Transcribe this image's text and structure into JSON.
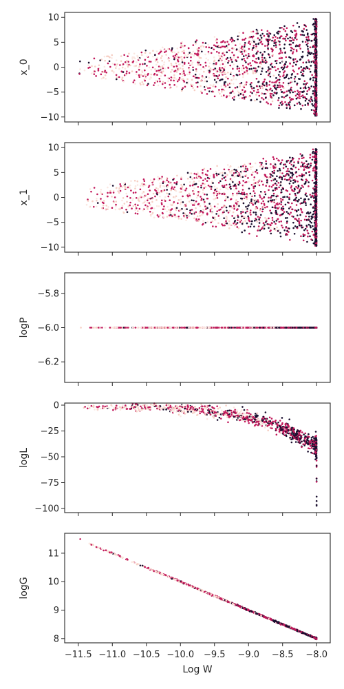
{
  "figure": {
    "xlabel": "Log W"
  },
  "colors": {
    "dark": "#1b1030",
    "mid": "#c2185b",
    "light": "#f6cfc4",
    "pale": "#fbe7e1",
    "axes": "#262626"
  },
  "shared_x": {
    "range": [
      -11.5,
      -8.0
    ],
    "ticks": [
      -11.5,
      -11.0,
      -10.5,
      -10.0,
      -9.5,
      -9.0,
      -8.5,
      -8.0
    ],
    "tick_labels": [
      "−11.5",
      "−11.0",
      "−10.5",
      "−10.0",
      "−9.5",
      "−9.0",
      "−8.5",
      "−8.0"
    ]
  },
  "chart_data": [
    {
      "type": "scatter",
      "ylabel": "x_0",
      "ylim": [
        -11,
        11
      ],
      "yticks": [
        10,
        5,
        0,
        -5,
        -10
      ],
      "ytick_labels": [
        "10",
        "5",
        "0",
        "−5",
        "−10"
      ],
      "shape": "fan",
      "spread_start": 1.6,
      "spread_end": 9.8,
      "grid": false
    },
    {
      "type": "scatter",
      "ylabel": "x_1",
      "ylim": [
        -11,
        11
      ],
      "yticks": [
        10,
        5,
        0,
        -5,
        -10
      ],
      "ytick_labels": [
        "10",
        "5",
        "0",
        "−5",
        "−10"
      ],
      "shape": "fan",
      "spread_start": 1.8,
      "spread_end": 9.8,
      "grid": false
    },
    {
      "type": "scatter",
      "ylabel": "logP",
      "ylim": [
        -6.32,
        -5.68
      ],
      "yticks": [
        -5.8,
        -6.0,
        -6.2
      ],
      "ytick_labels": [
        "−5.8",
        "−6.0",
        "−6.2"
      ],
      "shape": "constant",
      "value": -6.0,
      "grid": false
    },
    {
      "type": "scatter",
      "ylabel": "logL",
      "ylim": [
        -104,
        2
      ],
      "yticks": [
        0,
        -25,
        -50,
        -75,
        -100
      ],
      "ytick_labels": [
        "0",
        "−25",
        "−50",
        "−75",
        "−100"
      ],
      "shape": "curve",
      "start_value": -2,
      "knee_value": -40,
      "min_value": -100,
      "grid": false
    },
    {
      "type": "scatter",
      "ylabel": "logG",
      "ylim": [
        7.85,
        11.7
      ],
      "yticks": [
        11,
        10,
        9,
        8
      ],
      "ytick_labels": [
        "11",
        "10",
        "9",
        "8"
      ],
      "shape": "linear",
      "start_value": 11.5,
      "end_value": 8.0,
      "grid": false
    }
  ]
}
